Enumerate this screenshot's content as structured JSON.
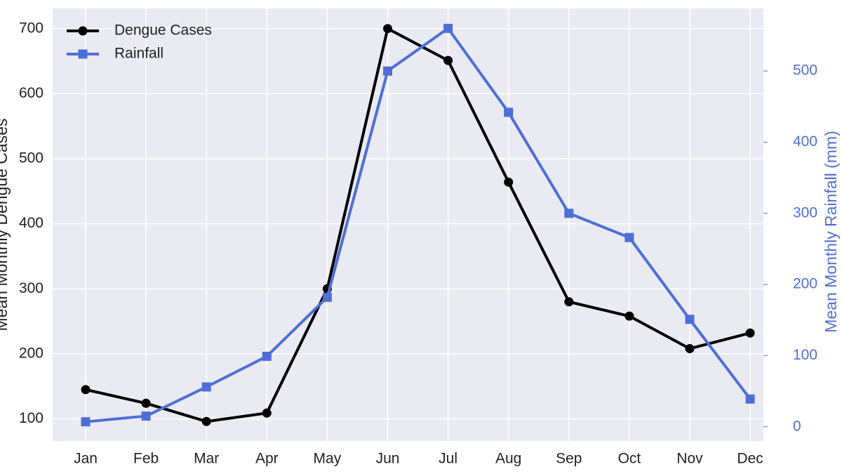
{
  "chart_data": {
    "type": "line",
    "categories": [
      "Jan",
      "Feb",
      "Mar",
      "Apr",
      "May",
      "Jun",
      "Jul",
      "Aug",
      "Sep",
      "Oct",
      "Nov",
      "Dec"
    ],
    "series": [
      {
        "name": "Dengue Cases",
        "color": "#000000",
        "marker": "circle",
        "axis": "y",
        "values": [
          145,
          124,
          96,
          109,
          300,
          700,
          651,
          464,
          280,
          258,
          208,
          232
        ]
      },
      {
        "name": "Rainfall",
        "color": "#4f6fd6",
        "marker": "square",
        "axis": "y2",
        "values": [
          7,
          15,
          56,
          99,
          182,
          500,
          560,
          442,
          300,
          266,
          151,
          39
        ]
      }
    ],
    "ylabel": "Mean Monthly Dengue Cases",
    "y2label": "Mean Monthly Rainfall (mm)",
    "ylim": [
      66,
      731
    ],
    "yticks": [
      100,
      200,
      300,
      400,
      500,
      600,
      700
    ],
    "y2lim": [
      -20,
      588
    ],
    "y2ticks": [
      0,
      100,
      200,
      300,
      400,
      500
    ],
    "grid": true,
    "legend": "upper-left"
  }
}
